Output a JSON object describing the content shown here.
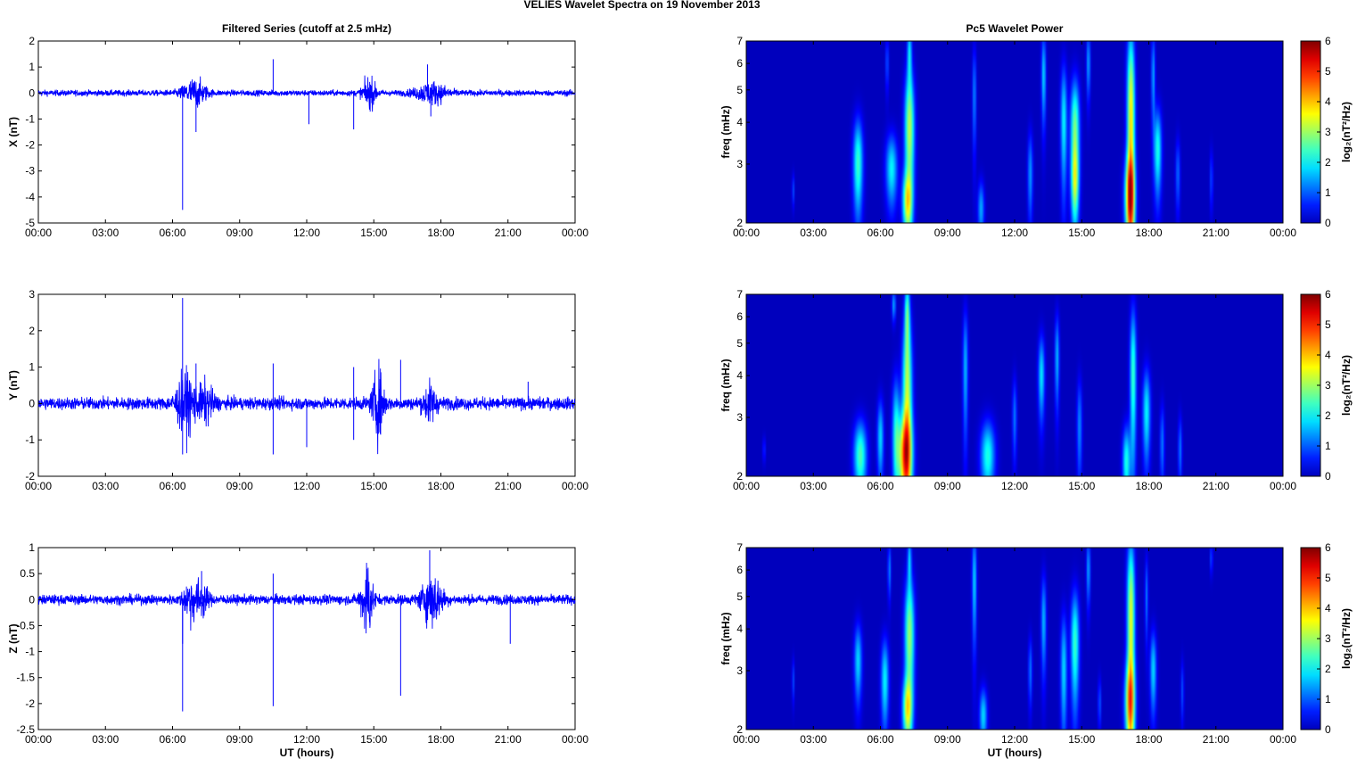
{
  "figure": {
    "title": "VELIES Wavelet Spectra on 19 November  2013"
  },
  "colors": {
    "series": "#0000ff",
    "background": "#000090"
  },
  "chart_data": [
    {
      "type": "line",
      "panel": "x-series",
      "title": "Filtered Series (cutoff at 2.5 mHz)",
      "xlabel": "",
      "ylabel": "X (nT)",
      "xlim": [
        0,
        24
      ],
      "ylim": [
        -5,
        2
      ],
      "xticks": [
        "00:00",
        "03:00",
        "06:00",
        "09:00",
        "12:00",
        "15:00",
        "18:00",
        "21:00",
        "00:00"
      ],
      "yticks": [
        "2",
        "1",
        "0",
        "-1",
        "-2",
        "-3",
        "-4",
        "-5"
      ],
      "noise_amplitude": 0.12,
      "bursts": [
        [
          6.8,
          0.35,
          0.45
        ],
        [
          7.2,
          0.3,
          0.4
        ],
        [
          14.8,
          0.6,
          0.3
        ],
        [
          17.6,
          0.4,
          0.7
        ]
      ],
      "spikes": [
        [
          6.45,
          -4.5
        ],
        [
          7.05,
          -1.5
        ],
        [
          10.5,
          1.3
        ],
        [
          12.1,
          -1.2
        ],
        [
          14.1,
          -1.4
        ],
        [
          17.4,
          1.1
        ],
        [
          17.55,
          -0.9
        ]
      ]
    },
    {
      "type": "line",
      "panel": "y-series",
      "title": "",
      "xlabel": "",
      "ylabel": "Y (nT)",
      "xlim": [
        0,
        24
      ],
      "ylim": [
        -2,
        3
      ],
      "xticks": [
        "00:00",
        "03:00",
        "06:00",
        "09:00",
        "12:00",
        "15:00",
        "18:00",
        "21:00",
        "00:00"
      ],
      "yticks": [
        "3",
        "2",
        "1",
        "0",
        "-1",
        "-2"
      ],
      "noise_amplitude": 0.18,
      "bursts": [
        [
          6.6,
          0.8,
          0.45
        ],
        [
          7.5,
          0.5,
          0.35
        ],
        [
          15.2,
          1.0,
          0.25
        ],
        [
          17.5,
          0.5,
          0.3
        ]
      ],
      "spikes": [
        [
          6.45,
          2.9
        ],
        [
          6.45,
          -1.4
        ],
        [
          7.05,
          1.1
        ],
        [
          10.5,
          -1.4
        ],
        [
          10.5,
          1.1
        ],
        [
          12.0,
          -1.2
        ],
        [
          14.1,
          1.0
        ],
        [
          14.1,
          -1.0
        ],
        [
          16.2,
          1.2
        ],
        [
          21.9,
          0.6
        ]
      ]
    },
    {
      "type": "line",
      "panel": "z-series",
      "title": "",
      "xlabel": "UT (hours)",
      "ylabel": "Z (nT)",
      "xlim": [
        0,
        24
      ],
      "ylim": [
        -2.5,
        1
      ],
      "xticks": [
        "00:00",
        "03:00",
        "06:00",
        "09:00",
        "12:00",
        "15:00",
        "18:00",
        "21:00",
        "00:00"
      ],
      "yticks": [
        "1",
        "0.5",
        "0",
        "-0.5",
        "-1",
        "-1.5",
        "-2",
        "-2.5"
      ],
      "noise_amplitude": 0.1,
      "bursts": [
        [
          6.8,
          0.4,
          0.3
        ],
        [
          7.3,
          0.3,
          0.3
        ],
        [
          14.7,
          0.8,
          0.25
        ],
        [
          17.6,
          0.5,
          0.45
        ]
      ],
      "spikes": [
        [
          6.45,
          -2.15
        ],
        [
          6.45,
          -0.85
        ],
        [
          7.3,
          0.55
        ],
        [
          10.5,
          -2.05
        ],
        [
          10.5,
          0.5
        ],
        [
          16.2,
          -1.85
        ],
        [
          17.5,
          0.95
        ],
        [
          21.1,
          -0.85
        ]
      ]
    },
    {
      "type": "heatmap",
      "panel": "x-spectrum",
      "title": "Pc5 Wavelet Power",
      "xlabel": "",
      "ylabel": "freq (mHz)",
      "colorbar_label": "log₂(nT²/Hz)",
      "xlim": [
        0,
        24
      ],
      "ylim": [
        2,
        7
      ],
      "yscale": "log",
      "clim": [
        0,
        6
      ],
      "xticks": [
        "00:00",
        "03:00",
        "06:00",
        "09:00",
        "12:00",
        "15:00",
        "18:00",
        "21:00",
        "00:00"
      ],
      "yticks": [
        2,
        3,
        4,
        5,
        6,
        7
      ],
      "colorbar_ticks": [
        0,
        1,
        2,
        3,
        4,
        5,
        6
      ],
      "blobs": [
        [
          2.1,
          2.5,
          0.04,
          0.2,
          0.9
        ],
        [
          5.0,
          3.0,
          0.15,
          0.7,
          2.4
        ],
        [
          6.5,
          2.9,
          0.18,
          0.5,
          2.0
        ],
        [
          7.2,
          2.3,
          0.15,
          0.35,
          2.8
        ],
        [
          7.3,
          3.8,
          0.15,
          1.2,
          3.2
        ],
        [
          7.3,
          6.5,
          0.07,
          0.9,
          1.8
        ],
        [
          6.3,
          6.0,
          0.05,
          0.8,
          1.0
        ],
        [
          10.2,
          4.8,
          0.06,
          1.2,
          1.3
        ],
        [
          10.5,
          2.2,
          0.1,
          0.3,
          1.5
        ],
        [
          12.7,
          2.8,
          0.08,
          0.6,
          1.4
        ],
        [
          13.3,
          5.5,
          0.07,
          1.2,
          1.8
        ],
        [
          14.2,
          4.0,
          0.1,
          1.2,
          2.0
        ],
        [
          14.7,
          3.8,
          0.14,
          1.0,
          2.8
        ],
        [
          14.7,
          2.6,
          0.12,
          0.5,
          2.2
        ],
        [
          15.3,
          6.0,
          0.06,
          1.0,
          1.5
        ],
        [
          17.15,
          2.4,
          0.16,
          0.5,
          3.5
        ],
        [
          17.2,
          4.0,
          0.12,
          2.2,
          3.8
        ],
        [
          18.2,
          5.5,
          0.06,
          1.2,
          1.5
        ],
        [
          18.4,
          3.3,
          0.12,
          0.7,
          2.2
        ],
        [
          19.3,
          2.8,
          0.07,
          0.5,
          1.1
        ],
        [
          20.8,
          2.7,
          0.05,
          0.4,
          0.9
        ]
      ]
    },
    {
      "type": "heatmap",
      "panel": "y-spectrum",
      "title": "",
      "xlabel": "",
      "ylabel": "freq (mHz)",
      "colorbar_label": "log₂(nT²/Hz)",
      "xlim": [
        0,
        24
      ],
      "ylim": [
        2,
        7
      ],
      "yscale": "log",
      "clim": [
        0,
        6
      ],
      "xticks": [
        "00:00",
        "03:00",
        "06:00",
        "09:00",
        "12:00",
        "15:00",
        "18:00",
        "21:00",
        "00:00"
      ],
      "yticks": [
        2,
        3,
        4,
        5,
        6,
        7
      ],
      "colorbar_ticks": [
        0,
        1,
        2,
        3,
        4,
        5,
        6
      ],
      "blobs": [
        [
          0.8,
          2.4,
          0.04,
          0.15,
          0.8
        ],
        [
          5.1,
          2.3,
          0.2,
          0.4,
          2.5
        ],
        [
          6.0,
          2.6,
          0.1,
          0.5,
          1.8
        ],
        [
          6.7,
          2.7,
          0.12,
          0.8,
          2.0
        ],
        [
          7.1,
          2.3,
          0.22,
          0.5,
          3.8
        ],
        [
          7.2,
          3.5,
          0.15,
          1.5,
          3.2
        ],
        [
          7.2,
          6.2,
          0.08,
          1.0,
          2.2
        ],
        [
          6.6,
          6.5,
          0.06,
          0.5,
          1.5
        ],
        [
          9.8,
          4.2,
          0.08,
          1.3,
          1.6
        ],
        [
          10.8,
          2.3,
          0.22,
          0.4,
          2.2
        ],
        [
          12.0,
          3.0,
          0.07,
          0.6,
          1.2
        ],
        [
          13.2,
          4.0,
          0.1,
          0.8,
          1.9
        ],
        [
          13.9,
          4.5,
          0.07,
          1.0,
          1.6
        ],
        [
          14.9,
          2.8,
          0.08,
          0.7,
          1.3
        ],
        [
          17.0,
          2.2,
          0.12,
          0.4,
          2.2
        ],
        [
          17.3,
          4.0,
          0.1,
          1.5,
          2.4
        ],
        [
          17.9,
          3.1,
          0.12,
          0.7,
          2.0
        ],
        [
          18.6,
          2.5,
          0.07,
          0.5,
          1.2
        ],
        [
          19.4,
          2.4,
          0.06,
          0.4,
          1.2
        ]
      ]
    },
    {
      "type": "heatmap",
      "panel": "z-spectrum",
      "title": "",
      "xlabel": "UT (hours)",
      "ylabel": "freq (mHz)",
      "colorbar_label": "log₂(nT²/Hz)",
      "xlim": [
        0,
        24
      ],
      "ylim": [
        2,
        7
      ],
      "yscale": "log",
      "clim": [
        0,
        6
      ],
      "xticks": [
        "00:00",
        "03:00",
        "06:00",
        "09:00",
        "12:00",
        "15:00",
        "18:00",
        "21:00",
        "00:00"
      ],
      "yticks": [
        2,
        3,
        4,
        5,
        6,
        7
      ],
      "colorbar_ticks": [
        0,
        1,
        2,
        3,
        4,
        5,
        6
      ],
      "blobs": [
        [
          2.1,
          2.8,
          0.04,
          0.3,
          0.9
        ],
        [
          5.0,
          3.2,
          0.12,
          0.6,
          1.8
        ],
        [
          6.2,
          2.8,
          0.12,
          0.6,
          2.0
        ],
        [
          6.4,
          6.0,
          0.05,
          0.8,
          1.3
        ],
        [
          7.2,
          2.3,
          0.15,
          0.35,
          2.8
        ],
        [
          7.3,
          3.8,
          0.15,
          1.2,
          3.0
        ],
        [
          7.3,
          6.5,
          0.06,
          0.8,
          1.6
        ],
        [
          10.2,
          5.5,
          0.07,
          1.5,
          1.8
        ],
        [
          10.6,
          2.2,
          0.12,
          0.3,
          1.8
        ],
        [
          12.7,
          3.0,
          0.06,
          0.5,
          1.2
        ],
        [
          13.3,
          4.2,
          0.08,
          1.0,
          1.6
        ],
        [
          14.2,
          3.0,
          0.1,
          0.9,
          1.8
        ],
        [
          14.7,
          3.6,
          0.13,
          1.0,
          2.4
        ],
        [
          15.3,
          6.0,
          0.06,
          1.0,
          1.5
        ],
        [
          15.8,
          2.4,
          0.05,
          0.3,
          1.0
        ],
        [
          17.15,
          2.4,
          0.16,
          0.5,
          3.0
        ],
        [
          17.2,
          4.2,
          0.12,
          2.0,
          3.5
        ],
        [
          17.9,
          5.0,
          0.05,
          1.0,
          1.2
        ],
        [
          18.2,
          3.0,
          0.1,
          0.6,
          1.8
        ],
        [
          20.8,
          6.5,
          0.04,
          0.5,
          1.0
        ],
        [
          19.5,
          2.6,
          0.05,
          0.4,
          0.9
        ]
      ]
    }
  ]
}
